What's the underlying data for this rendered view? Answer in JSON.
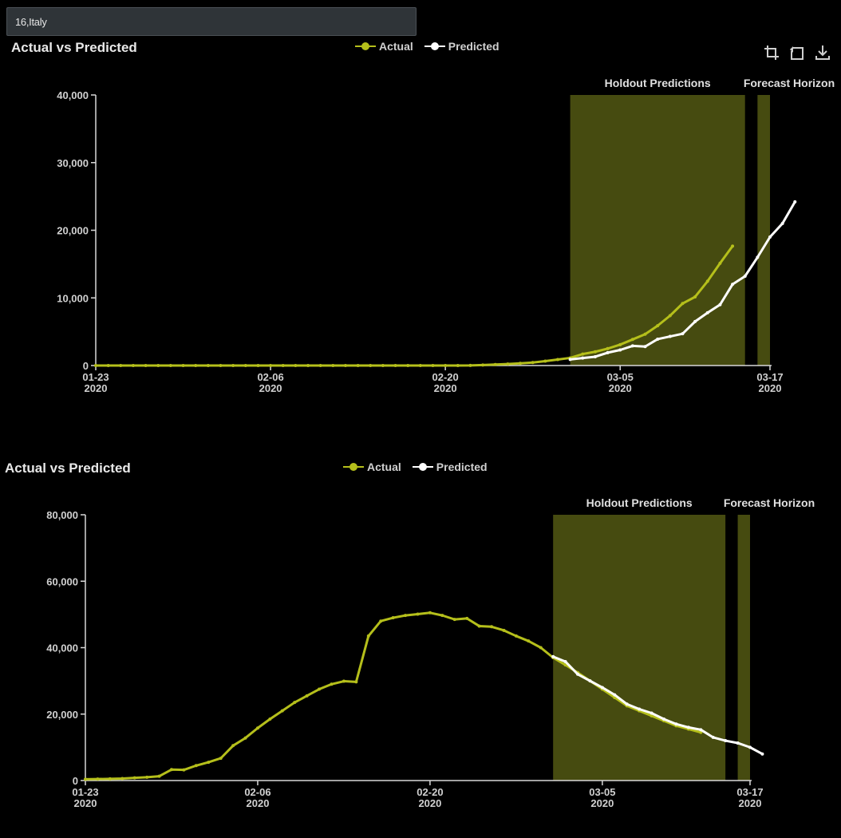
{
  "selector": {
    "value": "16,Italy"
  },
  "toolbar": {
    "icons": [
      "crop-icon",
      "reset-icon",
      "download-icon"
    ]
  },
  "colors": {
    "actual": "#b5bf1b",
    "predicted": "#ffffff",
    "band": "#464b10",
    "axis": "#d8d8d8",
    "background": "#000000"
  },
  "chart_data": [
    {
      "type": "line",
      "title": "Actual vs Predicted",
      "legend": [
        "Actual",
        "Predicted"
      ],
      "legend_position": "top-center",
      "bands": [
        {
          "label": "Holdout Predictions",
          "start": "2020-03-01",
          "end": "2020-03-15"
        },
        {
          "label": "Forecast Horizon",
          "start": "2020-03-16",
          "end": "2020-03-17"
        }
      ],
      "x_ticks": [
        {
          "date": "2020-01-23",
          "label": "01-23",
          "year": "2020"
        },
        {
          "date": "2020-02-06",
          "label": "02-06",
          "year": "2020"
        },
        {
          "date": "2020-02-20",
          "label": "02-20",
          "year": "2020"
        },
        {
          "date": "2020-03-05",
          "label": "03-05",
          "year": "2020"
        },
        {
          "date": "2020-03-17",
          "label": "03-17",
          "year": "2020"
        }
      ],
      "y_ticks": [
        "0",
        "10,000",
        "20,000",
        "30,000",
        "40,000"
      ],
      "ylim": [
        0,
        40000
      ],
      "xlim": [
        "2020-01-23",
        "2020-03-17"
      ],
      "grid": false,
      "series": [
        {
          "name": "Actual",
          "x_start": "2020-01-23",
          "values": [
            0,
            0,
            0,
            0,
            0,
            0,
            0,
            0,
            2,
            2,
            2,
            3,
            3,
            3,
            3,
            3,
            3,
            3,
            3,
            3,
            3,
            3,
            3,
            3,
            3,
            3,
            3,
            3,
            3,
            3,
            20,
            79,
            150,
            227,
            320,
            445,
            650,
            888,
            1128,
            1694,
            2036,
            2502,
            3089,
            3858,
            4636,
            5883,
            7375,
            9172,
            10149,
            12462,
            15113,
            17660
          ]
        },
        {
          "name": "Predicted",
          "x_start": "2020-03-01",
          "values": [
            900,
            1100,
            1300,
            1900,
            2300,
            2900,
            2800,
            3900,
            4300,
            4700,
            6500,
            7800,
            9000,
            12000,
            13200,
            16000,
            19000,
            21000,
            24200
          ]
        }
      ]
    },
    {
      "type": "line",
      "title": "Actual vs Predicted",
      "legend": [
        "Actual",
        "Predicted"
      ],
      "legend_position": "top-center",
      "bands": [
        {
          "label": "Holdout Predictions",
          "start": "2020-03-01",
          "end": "2020-03-15"
        },
        {
          "label": "Forecast Horizon",
          "start": "2020-03-16",
          "end": "2020-03-17"
        }
      ],
      "x_ticks": [
        {
          "date": "2020-01-23",
          "label": "01-23",
          "year": "2020"
        },
        {
          "date": "2020-02-06",
          "label": "02-06",
          "year": "2020"
        },
        {
          "date": "2020-02-20",
          "label": "02-20",
          "year": "2020"
        },
        {
          "date": "2020-03-05",
          "label": "03-05",
          "year": "2020"
        },
        {
          "date": "2020-03-17",
          "label": "03-17",
          "year": "2020"
        }
      ],
      "y_ticks": [
        "0",
        "20,000",
        "40,000",
        "60,000",
        "80,000"
      ],
      "ylim": [
        0,
        80000
      ],
      "xlim": [
        "2020-01-23",
        "2020-03-17"
      ],
      "grid": false,
      "series": [
        {
          "name": "Actual",
          "x_start": "2020-01-23",
          "values": [
            400,
            450,
            500,
            600,
            800,
            1000,
            1300,
            3300,
            3200,
            4500,
            5500,
            6700,
            10500,
            12800,
            15800,
            18500,
            21000,
            23500,
            25500,
            27500,
            29000,
            29900,
            29700,
            43500,
            48000,
            49000,
            49700,
            50100,
            50500,
            49700,
            48500,
            48800,
            46500,
            46300,
            45200,
            43500,
            42000,
            40000,
            37000,
            34800,
            32500,
            30000,
            27500,
            25000,
            22500,
            21000,
            19500,
            18000,
            16500,
            15500,
            14500
          ]
        },
        {
          "name": "Predicted",
          "x_start": "2020-03-01",
          "values": [
            37300,
            35800,
            32000,
            30000,
            28000,
            25800,
            23000,
            21500,
            20300,
            18500,
            17000,
            16000,
            15300,
            13000,
            12000,
            11300,
            10000,
            8000
          ]
        }
      ]
    }
  ]
}
